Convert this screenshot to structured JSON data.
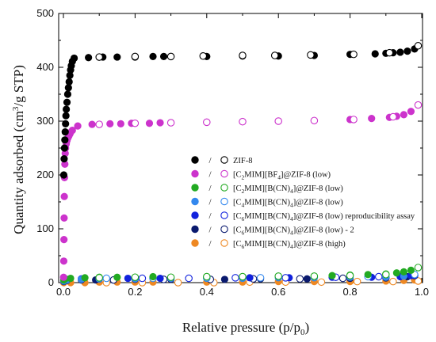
{
  "chart_data": {
    "type": "scatter",
    "xlabel": "Relative pressure (p/p",
    "xlabel_sub": "0",
    "xlabel_end": ")",
    "ylabel": "Quantity adsorbed  (cm",
    "ylabel_sup": "3",
    "ylabel_end": "/g STP)",
    "xlim": [
      0,
      1
    ],
    "ylim": [
      0,
      500
    ],
    "xticks": [
      "0.0",
      "0.2",
      "0.4",
      "0.6",
      "0.8",
      "1.0"
    ],
    "yticks": [
      "0",
      "100",
      "200",
      "300",
      "400",
      "500"
    ],
    "grid": false,
    "legend_position": "center-right",
    "legend_slash": "/",
    "series": [
      {
        "name": "ZIF-8",
        "legend_parts": [
          [
            "ZIF-8",
            ""
          ]
        ],
        "color": "#000000",
        "adsorption": [
          [
            0.001,
            200
          ],
          [
            0.002,
            230
          ],
          [
            0.003,
            250
          ],
          [
            0.004,
            265
          ],
          [
            0.005,
            280
          ],
          [
            0.006,
            295
          ],
          [
            0.007,
            310
          ],
          [
            0.008,
            322
          ],
          [
            0.01,
            335
          ],
          [
            0.012,
            350
          ],
          [
            0.014,
            362
          ],
          [
            0.016,
            373
          ],
          [
            0.018,
            385
          ],
          [
            0.02,
            395
          ],
          [
            0.022,
            403
          ],
          [
            0.025,
            411
          ],
          [
            0.03,
            417
          ],
          [
            0.07,
            418
          ],
          [
            0.11,
            419
          ],
          [
            0.15,
            419
          ],
          [
            0.2,
            419
          ],
          [
            0.25,
            420
          ],
          [
            0.28,
            420
          ],
          [
            0.4,
            420
          ],
          [
            0.5,
            421
          ],
          [
            0.6,
            421
          ],
          [
            0.7,
            422
          ],
          [
            0.8,
            424
          ],
          [
            0.87,
            425
          ],
          [
            0.9,
            426
          ],
          [
            0.92,
            427
          ],
          [
            0.94,
            428
          ],
          [
            0.96,
            430
          ],
          [
            0.98,
            434
          ]
        ],
        "desorption": [
          [
            0.99,
            440
          ],
          [
            0.91,
            427
          ],
          [
            0.81,
            424
          ],
          [
            0.69,
            423
          ],
          [
            0.59,
            422
          ],
          [
            0.5,
            422
          ],
          [
            0.39,
            421
          ],
          [
            0.3,
            420
          ],
          [
            0.2,
            420
          ],
          [
            0.1,
            419
          ]
        ]
      },
      {
        "name": "[C2MIM][BF4]@ZIF-8 (low)",
        "legend_parts": [
          [
            "[C",
            ""
          ],
          [
            "2",
            "sub"
          ],
          [
            "MIM][BF",
            ""
          ],
          [
            "4",
            "sub"
          ],
          [
            "]@ZIF-8 (low)",
            ""
          ]
        ],
        "color": "#cc33cc",
        "adsorption": [
          [
            0.0005,
            10
          ],
          [
            0.001,
            40
          ],
          [
            0.0015,
            80
          ],
          [
            0.002,
            120
          ],
          [
            0.0025,
            160
          ],
          [
            0.003,
            195
          ],
          [
            0.004,
            220
          ],
          [
            0.005,
            240
          ],
          [
            0.006,
            250
          ],
          [
            0.008,
            258
          ],
          [
            0.01,
            264
          ],
          [
            0.012,
            268
          ],
          [
            0.015,
            272
          ],
          [
            0.018,
            276
          ],
          [
            0.02,
            279
          ],
          [
            0.025,
            283
          ],
          [
            0.04,
            291
          ],
          [
            0.08,
            294
          ],
          [
            0.13,
            295
          ],
          [
            0.16,
            295
          ],
          [
            0.19,
            296
          ],
          [
            0.24,
            296
          ],
          [
            0.27,
            297
          ],
          [
            0.4,
            298
          ],
          [
            0.5,
            299
          ],
          [
            0.6,
            300
          ],
          [
            0.7,
            301
          ],
          [
            0.8,
            303
          ],
          [
            0.86,
            305
          ],
          [
            0.91,
            307
          ],
          [
            0.93,
            309
          ],
          [
            0.95,
            312
          ],
          [
            0.97,
            318
          ]
        ],
        "desorption": [
          [
            0.99,
            330
          ],
          [
            0.92,
            308
          ],
          [
            0.81,
            303
          ],
          [
            0.7,
            301
          ],
          [
            0.6,
            300
          ],
          [
            0.5,
            299
          ],
          [
            0.4,
            298
          ],
          [
            0.3,
            297
          ],
          [
            0.2,
            296
          ],
          [
            0.1,
            294
          ]
        ]
      },
      {
        "name": "[C2MIM][B(CN)4]@ZIF-8 (low)",
        "legend_parts": [
          [
            "[C",
            ""
          ],
          [
            "2",
            "sub"
          ],
          [
            "MIM][B(CN)",
            ""
          ],
          [
            "4",
            "sub"
          ],
          [
            "]@ZIF-8 (low)",
            ""
          ]
        ],
        "color": "#22aa22",
        "adsorption": [
          [
            0.001,
            5
          ],
          [
            0.005,
            7
          ],
          [
            0.02,
            8
          ],
          [
            0.06,
            9
          ],
          [
            0.1,
            10
          ],
          [
            0.15,
            10
          ],
          [
            0.2,
            10
          ],
          [
            0.25,
            11
          ],
          [
            0.4,
            11
          ],
          [
            0.5,
            11
          ],
          [
            0.6,
            12
          ],
          [
            0.7,
            12
          ],
          [
            0.75,
            13
          ],
          [
            0.8,
            14
          ],
          [
            0.85,
            15
          ],
          [
            0.9,
            16
          ],
          [
            0.93,
            18
          ],
          [
            0.95,
            20
          ],
          [
            0.97,
            23
          ]
        ],
        "desorption": [
          [
            0.99,
            28
          ],
          [
            0.9,
            15
          ],
          [
            0.8,
            13
          ],
          [
            0.7,
            12
          ],
          [
            0.6,
            12
          ],
          [
            0.5,
            11
          ],
          [
            0.4,
            11
          ],
          [
            0.3,
            10
          ],
          [
            0.2,
            10
          ],
          [
            0.1,
            9
          ]
        ]
      },
      {
        "name": "[C4MIM][B(CN)4]@ZIF-8 (low)",
        "legend_parts": [
          [
            "[C",
            ""
          ],
          [
            "4",
            "sub"
          ],
          [
            "MIM][B(CN)",
            ""
          ],
          [
            "4",
            "sub"
          ],
          [
            "]@ZIF-8 (low)",
            ""
          ]
        ],
        "color": "#3388ee",
        "adsorption": [
          [
            0.001,
            3
          ],
          [
            0.01,
            5
          ],
          [
            0.05,
            6
          ],
          [
            0.1,
            7
          ],
          [
            0.2,
            7
          ],
          [
            0.3,
            8
          ],
          [
            0.4,
            8
          ],
          [
            0.5,
            8
          ],
          [
            0.6,
            9
          ],
          [
            0.7,
            9
          ],
          [
            0.8,
            10
          ],
          [
            0.9,
            10
          ],
          [
            0.95,
            12
          ]
        ],
        "desorption": [
          [
            0.98,
            15
          ],
          [
            0.85,
            11
          ],
          [
            0.7,
            10
          ],
          [
            0.55,
            9
          ],
          [
            0.4,
            9
          ],
          [
            0.25,
            8
          ],
          [
            0.12,
            8
          ]
        ]
      },
      {
        "name": "[C6MIM][B(CN)4]@ZIF-8 (low) reproducibility assay",
        "legend_parts": [
          [
            "[C",
            ""
          ],
          [
            "6",
            "sub"
          ],
          [
            "MIM][B(CN)",
            ""
          ],
          [
            "4",
            "sub"
          ],
          [
            "]@ZIF-8 (low) reproducibility assay",
            ""
          ]
        ],
        "color": "#1122dd",
        "adsorption": [
          [
            0.001,
            4
          ],
          [
            0.01,
            6
          ],
          [
            0.05,
            7
          ],
          [
            0.1,
            7
          ],
          [
            0.18,
            8
          ],
          [
            0.27,
            8
          ],
          [
            0.4,
            9
          ],
          [
            0.52,
            9
          ],
          [
            0.63,
            9
          ],
          [
            0.75,
            10
          ],
          [
            0.86,
            10
          ],
          [
            0.94,
            11
          ],
          [
            0.97,
            13
          ]
        ],
        "desorption": [
          [
            0.98,
            14
          ],
          [
            0.88,
            11
          ],
          [
            0.76,
            10
          ],
          [
            0.62,
            9
          ],
          [
            0.48,
            9
          ],
          [
            0.35,
            8
          ],
          [
            0.22,
            8
          ],
          [
            0.1,
            7
          ]
        ]
      },
      {
        "name": "[C6MIM][B(CN)4]@ZIF-8 (low) - 2",
        "legend_parts": [
          [
            "[C",
            ""
          ],
          [
            "6",
            "sub"
          ],
          [
            "MIM][B(CN)",
            ""
          ],
          [
            "4",
            "sub"
          ],
          [
            "]@ZIF-8 (low) - 2",
            ""
          ]
        ],
        "color": "#0a1a6e",
        "adsorption": [
          [
            0.001,
            2
          ],
          [
            0.01,
            4
          ],
          [
            0.05,
            5
          ],
          [
            0.09,
            5
          ],
          [
            0.2,
            6
          ],
          [
            0.3,
            6
          ],
          [
            0.45,
            6
          ],
          [
            0.55,
            7
          ],
          [
            0.68,
            7
          ],
          [
            0.8,
            8
          ],
          [
            0.9,
            9
          ],
          [
            0.96,
            11
          ]
        ],
        "desorption": [
          [
            0.98,
            13
          ],
          [
            0.9,
            9
          ],
          [
            0.78,
            8
          ],
          [
            0.66,
            7
          ],
          [
            0.53,
            7
          ],
          [
            0.41,
            6
          ],
          [
            0.28,
            6
          ],
          [
            0.14,
            5
          ]
        ]
      },
      {
        "name": "[C6MIM][B(CN)4]@ZIF-8 (high)",
        "legend_parts": [
          [
            "[C",
            ""
          ],
          [
            "6",
            "sub"
          ],
          [
            "MIM][B(CN)",
            ""
          ],
          [
            "4",
            "sub"
          ],
          [
            "]@ZIF-8 (high)",
            ""
          ]
        ],
        "color": "#ee8822",
        "adsorption": [
          [
            0.001,
            0
          ],
          [
            0.02,
            0
          ],
          [
            0.06,
            0
          ],
          [
            0.1,
            1
          ],
          [
            0.15,
            1
          ],
          [
            0.2,
            1
          ],
          [
            0.25,
            1
          ],
          [
            0.4,
            1
          ],
          [
            0.5,
            1
          ],
          [
            0.6,
            2
          ],
          [
            0.7,
            2
          ],
          [
            0.8,
            2
          ],
          [
            0.9,
            3
          ],
          [
            0.95,
            4
          ],
          [
            0.98,
            5
          ]
        ],
        "desorption": [
          [
            0.99,
            3
          ],
          [
            0.92,
            2
          ],
          [
            0.82,
            2
          ],
          [
            0.72,
            1
          ],
          [
            0.62,
            1
          ],
          [
            0.52,
            1
          ],
          [
            0.42,
            0
          ],
          [
            0.32,
            0
          ],
          [
            0.22,
            0
          ],
          [
            0.12,
            0
          ]
        ]
      }
    ]
  }
}
